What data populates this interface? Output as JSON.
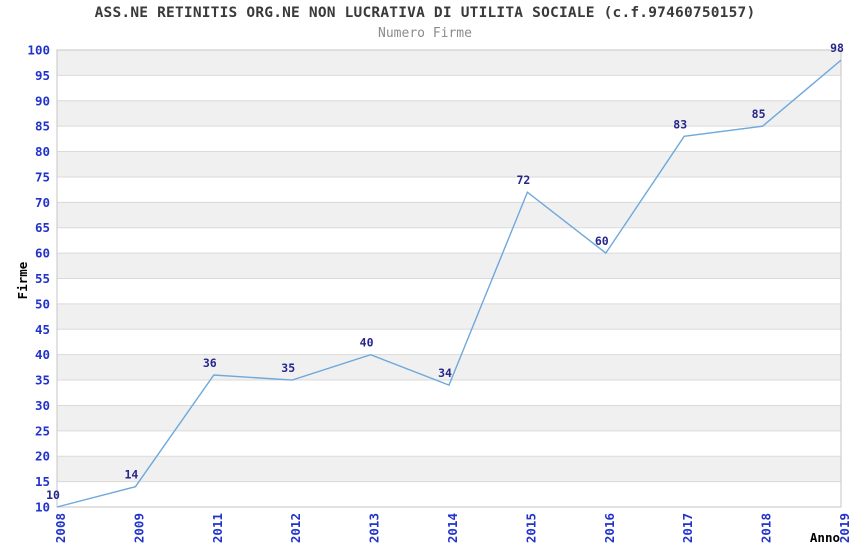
{
  "header": {
    "title": "ASS.NE RETINITIS ORG.NE NON LUCRATIVA DI UTILITA SOCIALE (c.f.97460750157)",
    "subtitle": "Numero Firme"
  },
  "chart_data": {
    "type": "line",
    "title": "ASS.NE RETINITIS ORG.NE NON LUCRATIVA DI UTILITA SOCIALE (c.f.97460750157)",
    "subtitle": "Numero Firme",
    "x": [
      "2008",
      "2009",
      "2011",
      "2012",
      "2013",
      "2014",
      "2015",
      "2016",
      "2017",
      "2018",
      "2019"
    ],
    "series": [
      {
        "name": "Numero Firme",
        "values": [
          10,
          14,
          36,
          35,
          40,
          34,
          72,
          60,
          83,
          85,
          98
        ]
      }
    ],
    "xlabel": "Anno",
    "ylabel": "Firme",
    "ylim": [
      10,
      100
    ],
    "ytick_step": 5,
    "grid": "horizontal-bands-every-5",
    "legend_position": "none",
    "data_labels": true,
    "x_tick_rotation": -90
  },
  "colors": {
    "line": "#6fa8dc",
    "axis_tick_label": "#2233cc",
    "data_label": "#26268c",
    "band_light": "#f0f0f0",
    "band_white": "#ffffff",
    "grid_line": "#dadada",
    "plot_border": "#c6c6c6",
    "title_text": "#3a3a3a",
    "subtitle_text": "#8c8c8c",
    "axis_title_text": "#000000",
    "background": "#ffffff"
  }
}
